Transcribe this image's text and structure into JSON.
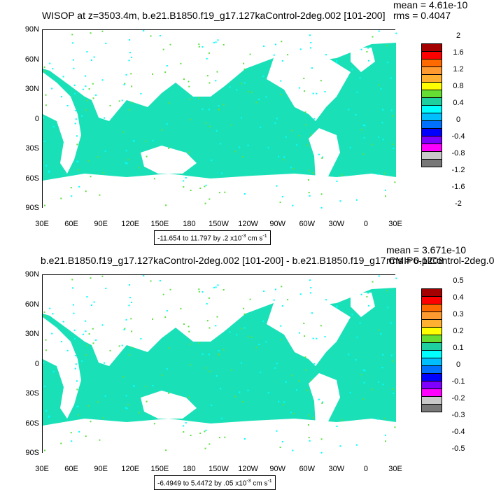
{
  "top": {
    "title": "WISOP at z=3503.4m, b.e21.B1850.f19_g17.127kaControl-2deg.002 [101-200]",
    "mean": "mean = 4.61e-10",
    "rms": "rms = 0.4047",
    "range_text": "-11.654 to 11.797 by .2 x10",
    "range_exp": "-3",
    "range_units": " cm s",
    "range_units_exp": "-1",
    "colorbar_labels": [
      "2",
      "1.6",
      "1.2",
      "0.8",
      "0.4",
      "0",
      "-0.4",
      "-0.8",
      "-1.2",
      "-1.6",
      "-2"
    ]
  },
  "bottom": {
    "title": "b.e21.B1850.f19_g17.127kaControl-2deg.002 [101-200] - b.e21.B1850.f19_g17.CMIP6-piControl-2deg.0",
    "mean": "mean = 3.671e-10",
    "rms": "rms = 0.1208",
    "range_text": "-6.4949 to 5.4472 by .05 x10",
    "range_exp": "-3",
    "range_units": " cm s",
    "range_units_exp": "-1",
    "colorbar_labels": [
      "0.5",
      "0.4",
      "0.3",
      "0.2",
      "0.1",
      "0",
      "-0.1",
      "-0.2",
      "-0.3",
      "-0.4",
      "-0.5"
    ]
  },
  "lat_labels": [
    "90N",
    "60N",
    "30N",
    "0",
    "30S",
    "60S",
    "90S"
  ],
  "lon_labels": [
    "30E",
    "60E",
    "90E",
    "120E",
    "150E",
    "180",
    "150W",
    "120W",
    "90W",
    "60W",
    "30W",
    "0",
    "30E"
  ],
  "colorbar_colors": [
    "#a50000",
    "#ff0000",
    "#ff6a00",
    "#ff9a30",
    "#ffb030",
    "#ffff00",
    "#66dd33",
    "#1ed0a0",
    "#00ffff",
    "#00bfff",
    "#0070ff",
    "#0000ff",
    "#7f00ff",
    "#ff00ff",
    "#c8c8c8",
    "#787878"
  ],
  "field_color": "#1ae0b8",
  "land_color": "#ffffff"
}
